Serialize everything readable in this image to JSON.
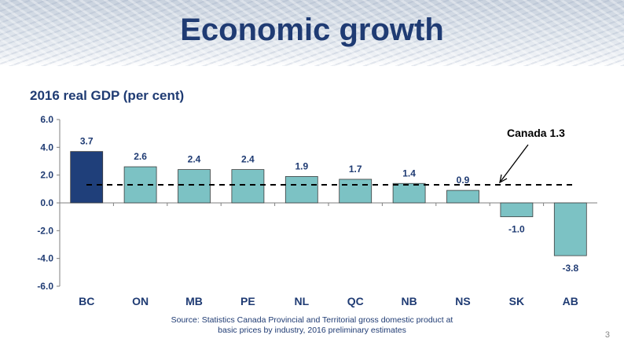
{
  "slide": {
    "title": "Economic growth",
    "subtitle": "2016 real GDP (per cent)",
    "source_line1": "Source: Statistics Canada Provincial and Territorial gross domestic product at",
    "source_line2": "basic prices by industry, 2016 preliminary estimates",
    "page_number": "3"
  },
  "chart_data": {
    "type": "bar",
    "categories": [
      "BC",
      "ON",
      "MB",
      "PE",
      "NL",
      "QC",
      "NB",
      "NS",
      "SK",
      "AB"
    ],
    "values": [
      3.7,
      2.6,
      2.4,
      2.4,
      1.9,
      1.7,
      1.4,
      0.9,
      -1.0,
      -3.8
    ],
    "data_labels": [
      "3.7",
      "2.6",
      "2.4",
      "2.4",
      "1.9",
      "1.7",
      "1.4",
      "0.9",
      "-1.0",
      "-3.8"
    ],
    "ylim": [
      -6,
      6
    ],
    "yticks": [
      6,
      4,
      2,
      0,
      -2,
      -4,
      -6
    ],
    "ytick_labels": [
      "6.0",
      "4.0",
      "2.0",
      "0.0",
      "-2.0",
      "-4.0",
      "-6.0"
    ],
    "reference_line": {
      "value": 1.3,
      "label": "Canada 1.3"
    },
    "highlight_category": "BC",
    "colors": {
      "highlight": "#1f3f7a",
      "bar": "#7cc2c4",
      "text": "#1f3b73"
    },
    "grid": false
  }
}
